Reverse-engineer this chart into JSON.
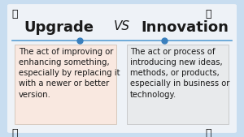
{
  "title_left": "Upgrade",
  "title_vs": "VS",
  "title_right": "Innovation",
  "text_left": "The act of improving or\nenhancing something,\nespecially by replacing it\nwith a newer or better\nversion.",
  "text_right": "The act or process of\nintroducing new ideas,\nmethods, or products,\nespecially in business or\ntechnology.",
  "bg_color": "#c8ddf0",
  "inner_bg": "#eef2f7",
  "box_left_color": "#f9e8e0",
  "box_right_color": "#e8eaec",
  "title_fontsize": 13,
  "vs_fontsize": 11,
  "text_fontsize": 7.2,
  "line_color": "#5a9fd4",
  "dot_color": "#3a7fbd",
  "title_color": "#1a1a1a",
  "text_color": "#1a1a1a"
}
